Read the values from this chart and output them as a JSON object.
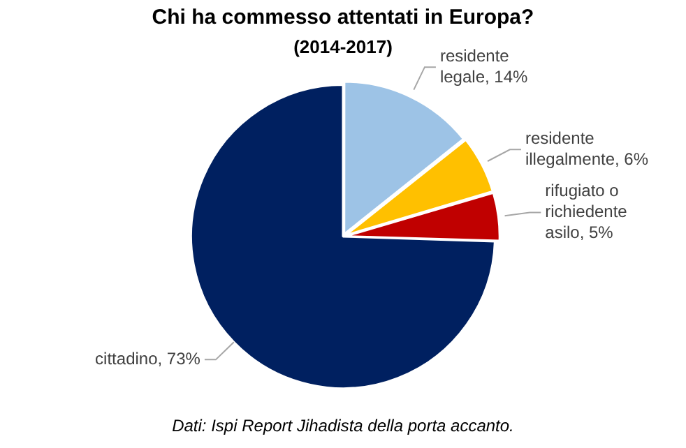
{
  "chart_data": {
    "type": "pie",
    "title": "Chi ha commesso attentati in Europa?",
    "subtitle": "(2014-2017)",
    "categories": [
      "residente legale",
      "residente illegalmente",
      "rifugiato o richiedente asilo",
      "cittadino"
    ],
    "values": [
      14,
      6,
      5,
      73
    ],
    "value_labels": [
      "14%",
      "6%",
      "5%",
      "73%"
    ],
    "colors": [
      "#9dc3e6",
      "#ffc000",
      "#c00000",
      "#002060"
    ],
    "legend": false,
    "annotations": [
      "Dati: Ispi Report Jihadista della porta accanto."
    ]
  }
}
